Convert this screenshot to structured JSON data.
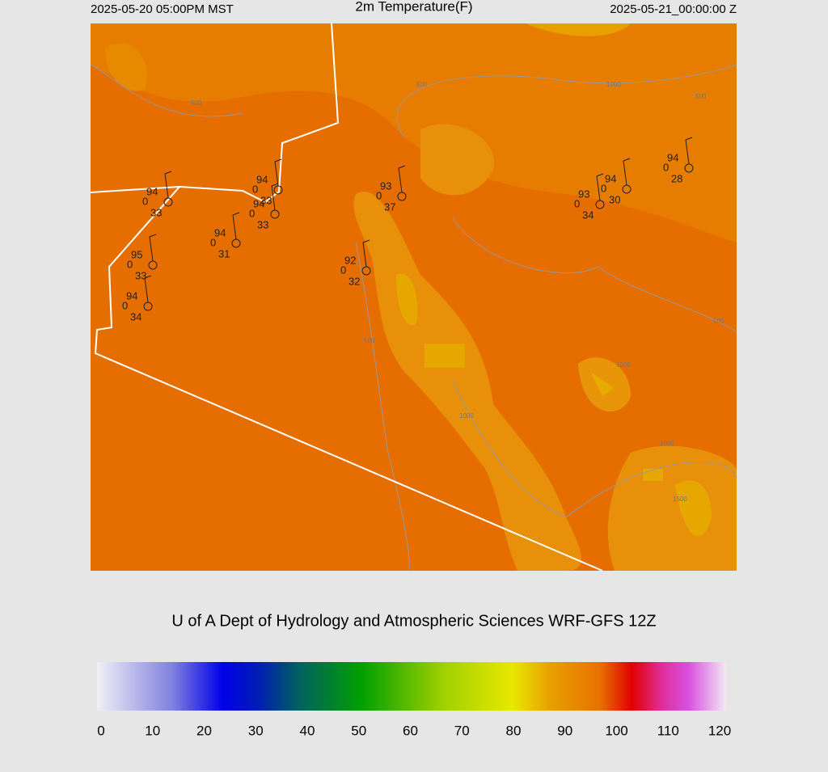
{
  "header": {
    "left": "2025-05-20 05:00PM MST",
    "title": "2m Temperature(F)",
    "right": "2025-05-21_00:00:00 Z"
  },
  "stations": [
    {
      "temp": 94,
      "gust": 0,
      "dew": 33
    },
    {
      "temp": 94,
      "gust": 0,
      "dew": 33
    },
    {
      "temp": 94,
      "gust": 0,
      "dew": 33
    },
    {
      "temp": 94,
      "gust": 0,
      "dew": 31
    },
    {
      "temp": 95,
      "gust": 0,
      "dew": 33
    },
    {
      "temp": 94,
      "gust": 0,
      "dew": 34
    },
    {
      "temp": 92,
      "gust": 0,
      "dew": 32
    },
    {
      "temp": 93,
      "gust": 0,
      "dew": 37
    },
    {
      "temp": 93,
      "gust": 0,
      "dew": 34
    },
    {
      "temp": 94,
      "gust": 0,
      "dew": 30
    },
    {
      "temp": 94,
      "gust": 0,
      "dew": 28
    }
  ],
  "contour_labels": [
    "500",
    "500",
    "500",
    "500",
    "500",
    "1000",
    "1000",
    "1000",
    "1000",
    "1500"
  ],
  "footer": "U of A Dept of Hydrology and Atmospheric Sciences WRF-GFS 12Z",
  "colorbar": {
    "ticks": [
      0,
      10,
      20,
      30,
      40,
      50,
      60,
      70,
      80,
      90,
      100,
      110,
      120
    ]
  }
}
